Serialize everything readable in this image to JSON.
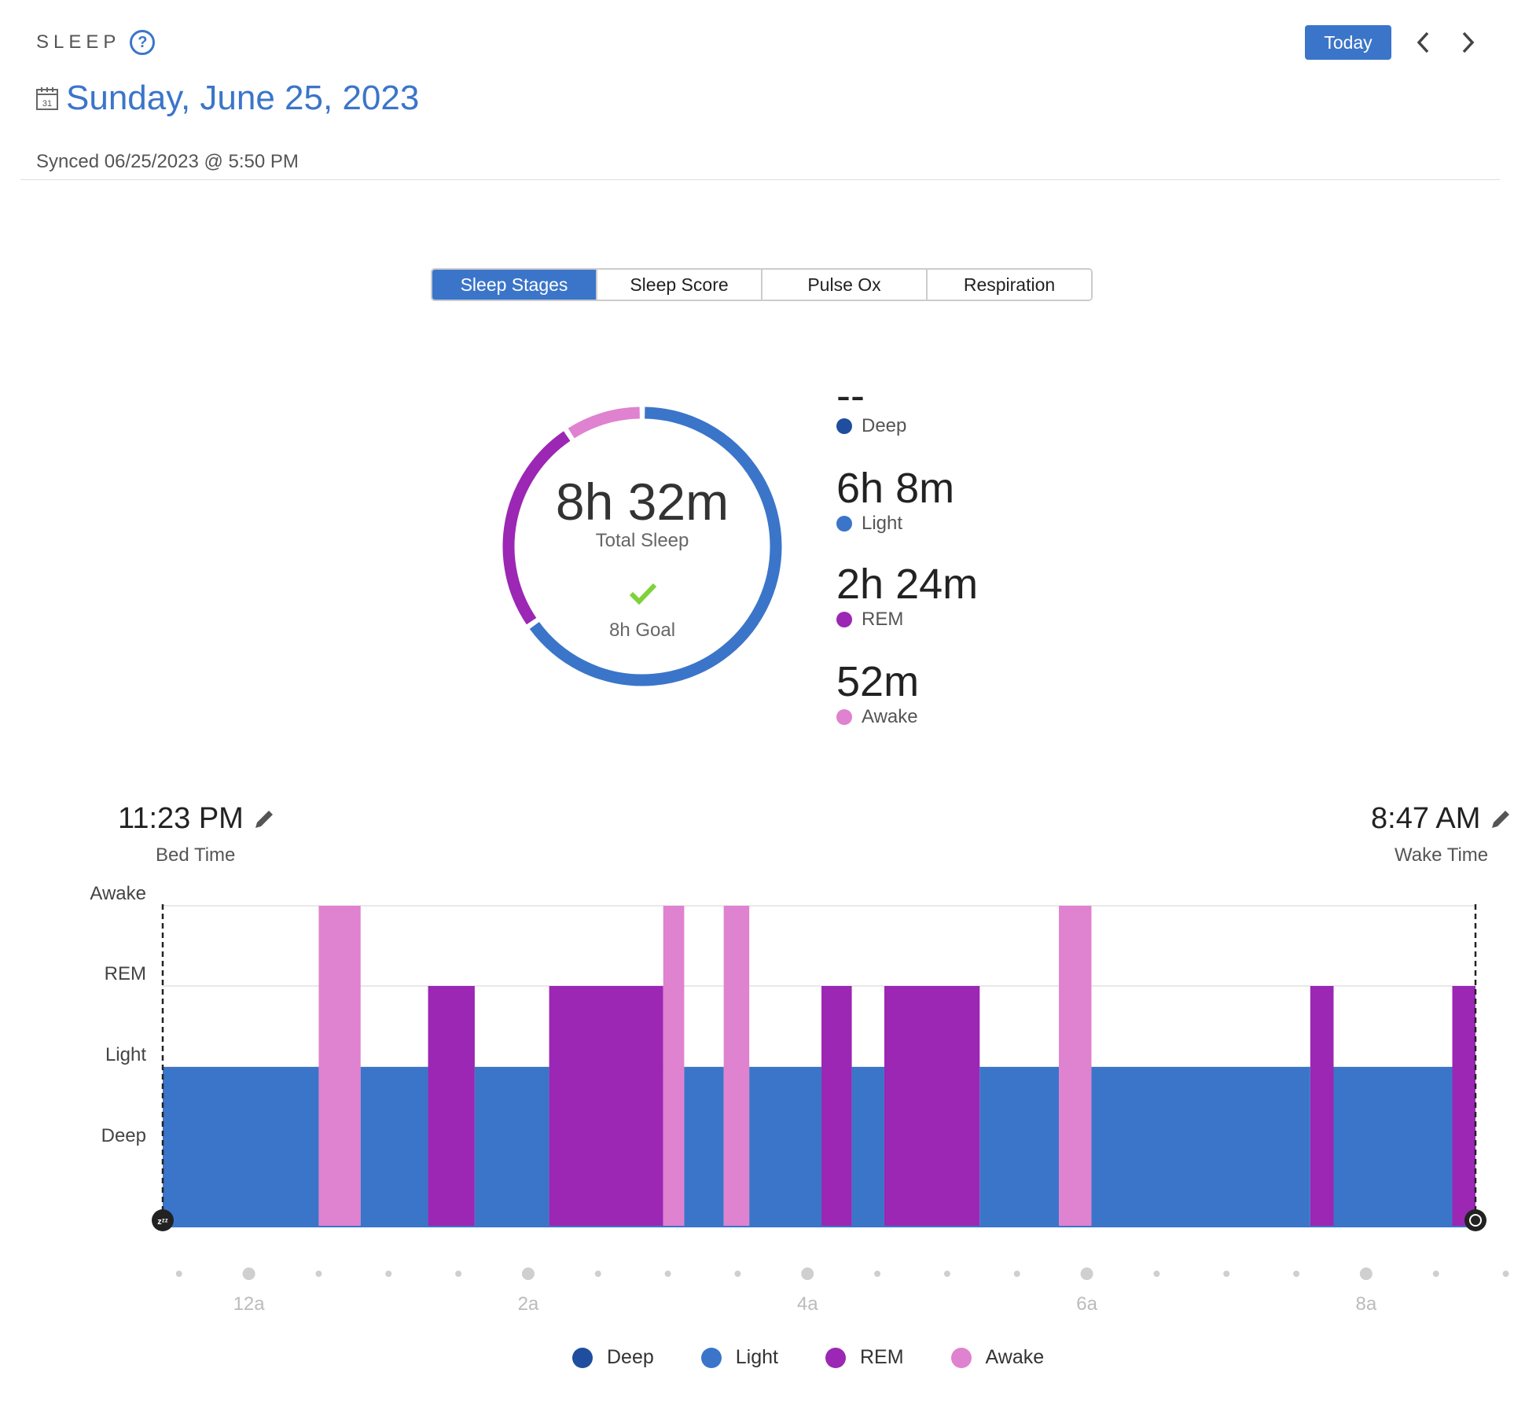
{
  "header": {
    "section_title": "SLEEP",
    "help_icon": "question-circle-icon",
    "date": "Sunday, June 25, 2023",
    "calendar_icon_day": "31",
    "synced": "Synced 06/25/2023 @ 5:50 PM",
    "today_label": "Today",
    "accent_color": "#3b75c9"
  },
  "tabs": [
    {
      "label": "Sleep Stages",
      "active": true
    },
    {
      "label": "Sleep Score",
      "active": false
    },
    {
      "label": "Pulse Ox",
      "active": false
    },
    {
      "label": "Respiration",
      "active": false
    }
  ],
  "summary": {
    "total": "8h 32m",
    "total_label": "Total Sleep",
    "goal": "8h Goal",
    "goal_met_icon": "check-icon",
    "ring_segments_minutes": [
      {
        "stage": "Light",
        "minutes": 368,
        "color": "#3b75c9"
      },
      {
        "stage": "REM",
        "minutes": 144,
        "color": "#9b27b4"
      },
      {
        "stage": "Awake",
        "minutes": 52,
        "color": "#df82cf"
      }
    ],
    "stages": [
      {
        "value": "--",
        "label": "Deep",
        "color": "#1f4e9e"
      },
      {
        "value": "6h 8m",
        "label": "Light",
        "color": "#3b75c9"
      },
      {
        "value": "2h 24m",
        "label": "REM",
        "color": "#9b27b4"
      },
      {
        "value": "52m",
        "label": "Awake",
        "color": "#df82cf"
      }
    ]
  },
  "times": {
    "bed_time": "11:23 PM",
    "bed_label": "Bed Time",
    "wake_time": "8:47 AM",
    "wake_label": "Wake Time"
  },
  "chart_data": {
    "type": "bar",
    "title": "Sleep Stages",
    "y_levels": [
      "Deep",
      "Light",
      "REM",
      "Awake"
    ],
    "x_range_hours": [
      -0.617,
      8.783
    ],
    "x_ticks": [
      "12a",
      "2a",
      "4a",
      "6a",
      "8a"
    ],
    "segments": [
      {
        "stage": "Light",
        "start": -0.617,
        "end": 0.5
      },
      {
        "stage": "Awake",
        "start": 0.5,
        "end": 0.8
      },
      {
        "stage": "Light",
        "start": 0.8,
        "end": 1.283
      },
      {
        "stage": "REM",
        "start": 1.283,
        "end": 1.617
      },
      {
        "stage": "Light",
        "start": 1.617,
        "end": 2.15
      },
      {
        "stage": "REM",
        "start": 2.15,
        "end": 2.967
      },
      {
        "stage": "Awake",
        "start": 2.967,
        "end": 3.117
      },
      {
        "stage": "Light",
        "start": 3.117,
        "end": 3.4
      },
      {
        "stage": "Awake",
        "start": 3.4,
        "end": 3.583
      },
      {
        "stage": "Light",
        "start": 3.583,
        "end": 4.1
      },
      {
        "stage": "REM",
        "start": 4.1,
        "end": 4.317
      },
      {
        "stage": "Light",
        "start": 4.317,
        "end": 4.55
      },
      {
        "stage": "REM",
        "start": 4.55,
        "end": 5.233
      },
      {
        "stage": "Light",
        "start": 5.233,
        "end": 5.8
      },
      {
        "stage": "Awake",
        "start": 5.8,
        "end": 6.033
      },
      {
        "stage": "Light",
        "start": 6.033,
        "end": 7.6
      },
      {
        "stage": "REM",
        "start": 7.6,
        "end": 7.767
      },
      {
        "stage": "Light",
        "start": 7.767,
        "end": 8.617
      },
      {
        "stage": "REM",
        "start": 8.617,
        "end": 8.783
      }
    ],
    "legend": [
      {
        "label": "Deep",
        "color": "#1f4e9e"
      },
      {
        "label": "Light",
        "color": "#3b75c9"
      },
      {
        "label": "REM",
        "color": "#9b27b4"
      },
      {
        "label": "Awake",
        "color": "#df82cf"
      }
    ]
  }
}
